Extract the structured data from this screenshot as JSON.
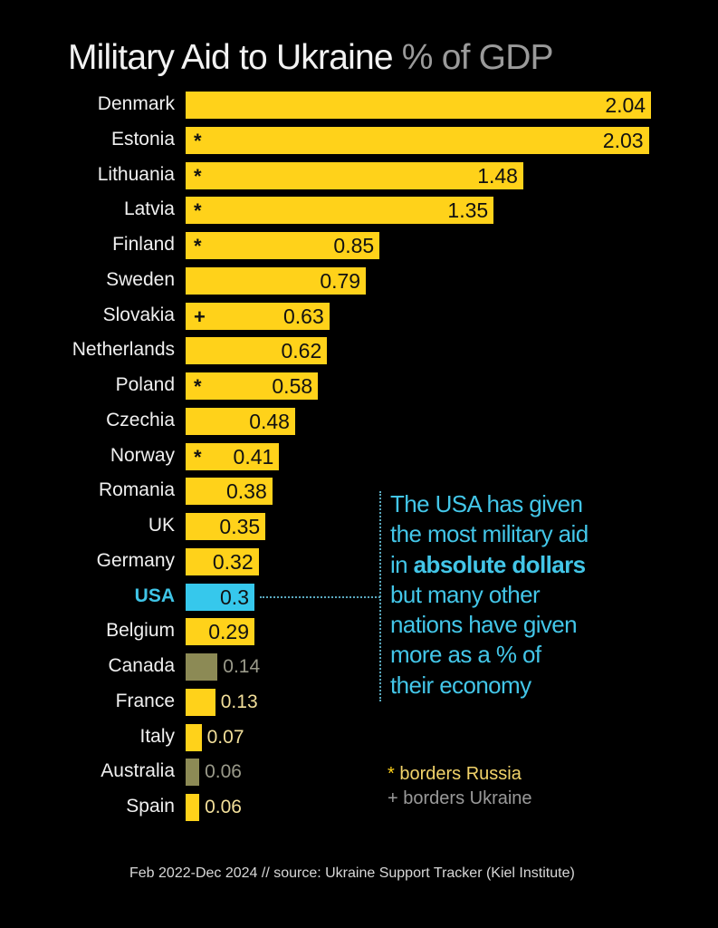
{
  "colors": {
    "background": "#000000",
    "europe_bar": "#ffd21a",
    "usa_bar": "#36c8ec",
    "non_europe_bar": "#8c8a55",
    "annotation": "#43c6e8"
  },
  "chart_data": {
    "type": "bar",
    "orientation": "horizontal",
    "title": "Military Aid to Ukraine",
    "subtitle": "% of GDP",
    "xlabel": "",
    "ylabel": "",
    "xlim": [
      0,
      2.04
    ],
    "grid": false,
    "categories": [
      "Denmark",
      "Estonia",
      "Lithuania",
      "Latvia",
      "Finland",
      "Sweden",
      "Slovakia",
      "Netherlands",
      "Poland",
      "Czechia",
      "Norway",
      "Romania",
      "UK",
      "Germany",
      "USA",
      "Belgium",
      "Canada",
      "France",
      "Italy",
      "Australia",
      "Spain"
    ],
    "values": [
      2.04,
      2.03,
      1.48,
      1.35,
      0.85,
      0.79,
      0.63,
      0.62,
      0.58,
      0.48,
      0.41,
      0.38,
      0.35,
      0.32,
      0.3,
      0.29,
      0.14,
      0.13,
      0.07,
      0.06,
      0.06
    ],
    "value_labels": [
      "2.04",
      "2.03",
      "1.48",
      "1.35",
      "0.85",
      "0.79",
      "0.63",
      "0.62",
      "0.58",
      "0.48",
      "0.41",
      "0.38",
      "0.35",
      "0.32",
      "0.3",
      "0.29",
      "0.14",
      "0.13",
      "0.07",
      "0.06",
      "0.06"
    ],
    "markers": [
      "",
      "*",
      "*",
      "*",
      "*",
      "",
      "+",
      "",
      "*",
      "",
      "*",
      "",
      "",
      "",
      "",
      "",
      "",
      "",
      "",
      "",
      ""
    ],
    "groups": [
      "europe",
      "europe",
      "europe",
      "europe",
      "europe",
      "europe",
      "europe",
      "europe",
      "europe",
      "europe",
      "europe",
      "europe",
      "europe",
      "europe",
      "usa",
      "europe",
      "non_europe",
      "europe",
      "europe",
      "non_europe",
      "europe"
    ],
    "legend": [
      {
        "symbol": "*",
        "text": "borders Russia"
      },
      {
        "symbol": "+",
        "text": "borders Ukraine"
      }
    ],
    "legend_position": "bottom-right",
    "annotation": {
      "target": "USA",
      "lines": [
        [
          {
            "t": "The USA has given"
          }
        ],
        [
          {
            "t": "the most military aid"
          }
        ],
        [
          {
            "t": "in "
          },
          {
            "t": "absolute dollars",
            "bold": true
          }
        ],
        [
          {
            "t": "but many other"
          }
        ],
        [
          {
            "t": "nations have given"
          }
        ],
        [
          {
            "t": "more as a % of"
          }
        ],
        [
          {
            "t": "their economy"
          }
        ]
      ]
    },
    "footer": "Feb 2022-Dec 2024 // source: Ukraine Support Tracker (Kiel Institute)"
  }
}
